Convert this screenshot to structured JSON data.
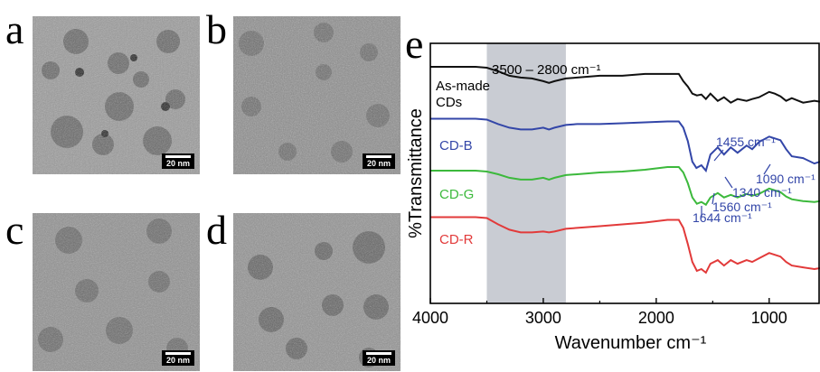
{
  "panels": {
    "a": {
      "letter": "a",
      "scale": "20 nm"
    },
    "b": {
      "letter": "b",
      "scale": "20 nm"
    },
    "c": {
      "letter": "c",
      "scale": "20 nm"
    },
    "d": {
      "letter": "d",
      "scale": "20 nm"
    },
    "e": {
      "letter": "e"
    }
  },
  "colors": {
    "black": "#111111",
    "blue": "#3346a8",
    "green": "#3cb93c",
    "red": "#e23a3a",
    "band": "#c9ccd3"
  },
  "chart_data": {
    "type": "line",
    "xlabel": "Wavenumber cm⁻¹",
    "ylabel": "%Transmittance",
    "xlim": [
      4000,
      550
    ],
    "x_reversed": true,
    "xticks": [
      4000,
      3000,
      2000,
      1000
    ],
    "xtick_labels": [
      "4000",
      "3000",
      "2000",
      "1000"
    ],
    "y_units": "arbitrary (offset stacked)",
    "shaded_band": {
      "from": 3500,
      "to": 2800,
      "label": "3500 – 2800 cm⁻¹"
    },
    "series": [
      {
        "name": "As-made CDs",
        "color": "#111111",
        "x": [
          4000,
          3600,
          3500,
          3400,
          3300,
          3200,
          3100,
          3000,
          2950,
          2900,
          2800,
          2700,
          2500,
          2300,
          2100,
          1900,
          1800,
          1760,
          1720,
          1680,
          1640,
          1600,
          1560,
          1520,
          1455,
          1400,
          1340,
          1280,
          1200,
          1150,
          1090,
          1000,
          950,
          900,
          850,
          800,
          700,
          600,
          550
        ],
        "y": [
          58,
          58,
          57,
          53,
          48,
          46,
          45,
          42,
          40,
          42,
          45,
          46,
          48,
          48,
          50,
          50,
          50,
          42,
          36,
          28,
          26,
          27,
          22,
          28,
          20,
          24,
          18,
          22,
          20,
          22,
          24,
          30,
          28,
          25,
          20,
          23,
          18,
          20,
          19
        ]
      },
      {
        "name": "CD-B",
        "color": "#3346a8",
        "x": [
          4000,
          3600,
          3500,
          3400,
          3300,
          3200,
          3100,
          3000,
          2950,
          2900,
          2800,
          2700,
          2500,
          2300,
          2100,
          1900,
          1800,
          1760,
          1720,
          1680,
          1644,
          1600,
          1560,
          1520,
          1455,
          1400,
          1340,
          1280,
          1200,
          1150,
          1090,
          1000,
          950,
          900,
          850,
          800,
          700,
          600,
          550
        ],
        "y": [
          0,
          0,
          -1,
          -6,
          -10,
          -12,
          -12,
          -10,
          -12,
          -10,
          -7,
          -6,
          -6,
          -5,
          -4,
          -3,
          -3,
          -10,
          -25,
          -48,
          -55,
          -52,
          -58,
          -40,
          -32,
          -40,
          -32,
          -38,
          -30,
          -34,
          -26,
          -20,
          -22,
          -24,
          -34,
          -42,
          -44,
          -50,
          -48
        ]
      },
      {
        "name": "CD-G",
        "color": "#3cb93c",
        "x": [
          4000,
          3600,
          3500,
          3400,
          3300,
          3200,
          3100,
          3000,
          2950,
          2900,
          2800,
          2700,
          2500,
          2300,
          2100,
          1900,
          1800,
          1760,
          1720,
          1680,
          1640,
          1600,
          1560,
          1520,
          1455,
          1400,
          1340,
          1280,
          1200,
          1150,
          1090,
          1000,
          950,
          900,
          850,
          800,
          700,
          600,
          550
        ],
        "y": [
          -58,
          -58,
          -59,
          -62,
          -66,
          -68,
          -68,
          -66,
          -68,
          -66,
          -63,
          -62,
          -60,
          -59,
          -57,
          -54,
          -54,
          -60,
          -72,
          -88,
          -95,
          -93,
          -96,
          -88,
          -83,
          -88,
          -85,
          -88,
          -84,
          -86,
          -84,
          -78,
          -80,
          -82,
          -87,
          -90,
          -92,
          -93,
          -92
        ]
      },
      {
        "name": "CD-R",
        "color": "#e23a3a",
        "x": [
          4000,
          3600,
          3500,
          3400,
          3300,
          3200,
          3100,
          3000,
          2950,
          2900,
          2800,
          2700,
          2500,
          2300,
          2100,
          1900,
          1800,
          1760,
          1720,
          1680,
          1640,
          1600,
          1560,
          1520,
          1455,
          1400,
          1340,
          1280,
          1200,
          1150,
          1090,
          1000,
          950,
          900,
          850,
          800,
          700,
          600,
          550
        ],
        "y": [
          -110,
          -110,
          -111,
          -118,
          -124,
          -127,
          -127,
          -126,
          -127,
          -126,
          -123,
          -122,
          -120,
          -118,
          -116,
          -113,
          -113,
          -122,
          -140,
          -160,
          -170,
          -168,
          -172,
          -162,
          -158,
          -164,
          -158,
          -162,
          -158,
          -160,
          -156,
          -150,
          -152,
          -154,
          -160,
          -164,
          -166,
          -168,
          -167
        ]
      }
    ],
    "labels": [
      {
        "text": "As-made",
        "series": "As-made CDs"
      },
      {
        "text": "CDs",
        "series": "As-made CDs"
      },
      {
        "text": "CD-B",
        "series": "CD-B"
      },
      {
        "text": "CD-G",
        "series": "CD-G"
      },
      {
        "text": "CD-R",
        "series": "CD-R"
      }
    ],
    "annotations": [
      {
        "text": "1455 cm⁻¹",
        "x": 1455
      },
      {
        "text": "1090 cm⁻¹",
        "x": 1090
      },
      {
        "text": "1340 cm⁻¹",
        "x": 1340
      },
      {
        "text": "1560 cm⁻¹",
        "x": 1560
      },
      {
        "text": "1644 cm⁻¹",
        "x": 1644
      }
    ]
  }
}
